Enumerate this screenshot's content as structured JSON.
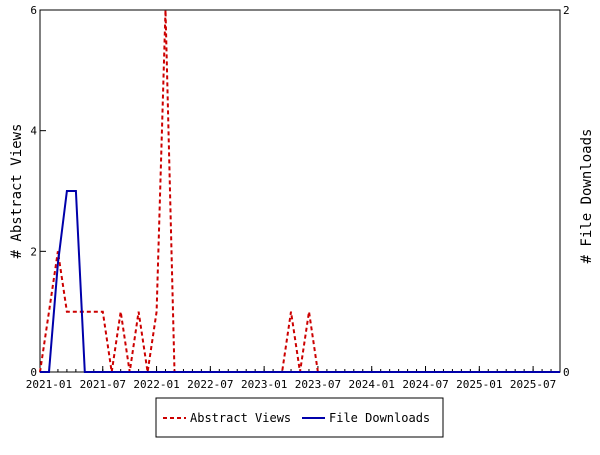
{
  "chart_data": {
    "type": "line",
    "title": "",
    "xlabel": "",
    "ylabel_left": "# Abstract Views",
    "ylabel_right": "# File Downloads",
    "x_ticks": [
      "2021-01",
      "2021-07",
      "2022-01",
      "2022-07",
      "2023-01",
      "2023-07",
      "2024-01",
      "2024-07",
      "2025-01",
      "2025-07"
    ],
    "y_left_ticks": [
      "0",
      "2",
      "4",
      "6"
    ],
    "y_right_ticks": [
      "0",
      "2"
    ],
    "ylim_left": [
      0,
      6
    ],
    "ylim_right": [
      0,
      2
    ],
    "xlim": [
      "2020-12",
      "2025-10"
    ],
    "grid": false,
    "legend_position": "bottom",
    "series": [
      {
        "name": "Abstract Views",
        "axis": "left",
        "color": "#cc0000",
        "dash": "dashed",
        "points": [
          [
            "2020-12",
            0
          ],
          [
            "2021-01",
            1
          ],
          [
            "2021-02",
            2
          ],
          [
            "2021-03",
            1
          ],
          [
            "2021-04",
            1
          ],
          [
            "2021-05",
            1
          ],
          [
            "2021-06",
            1
          ],
          [
            "2021-07",
            1
          ],
          [
            "2021-08",
            0
          ],
          [
            "2021-09",
            1
          ],
          [
            "2021-10",
            0
          ],
          [
            "2021-11",
            1
          ],
          [
            "2021-12",
            0
          ],
          [
            "2022-01",
            1
          ],
          [
            "2022-02",
            6
          ],
          [
            "2022-03",
            0
          ],
          [
            "2022-04",
            0
          ],
          [
            "2022-05",
            0
          ],
          [
            "2022-06",
            0
          ],
          [
            "2022-07",
            0
          ],
          [
            "2022-08",
            0
          ],
          [
            "2022-09",
            0
          ],
          [
            "2022-10",
            0
          ],
          [
            "2022-11",
            0
          ],
          [
            "2022-12",
            0
          ],
          [
            "2023-01",
            0
          ],
          [
            "2023-02",
            0
          ],
          [
            "2023-03",
            0
          ],
          [
            "2023-04",
            1
          ],
          [
            "2023-05",
            0
          ],
          [
            "2023-06",
            1
          ],
          [
            "2023-07",
            0
          ],
          [
            "2023-08",
            0
          ],
          [
            "2023-09",
            0
          ],
          [
            "2023-10",
            0
          ],
          [
            "2023-11",
            0
          ],
          [
            "2023-12",
            0
          ],
          [
            "2024-01",
            0
          ],
          [
            "2024-02",
            0
          ],
          [
            "2024-03",
            0
          ],
          [
            "2024-04",
            0
          ],
          [
            "2024-05",
            0
          ],
          [
            "2024-06",
            0
          ],
          [
            "2024-07",
            0
          ],
          [
            "2024-08",
            0
          ],
          [
            "2024-09",
            0
          ],
          [
            "2024-10",
            0
          ],
          [
            "2024-11",
            0
          ],
          [
            "2024-12",
            0
          ],
          [
            "2025-01",
            0
          ],
          [
            "2025-02",
            0
          ],
          [
            "2025-03",
            0
          ],
          [
            "2025-04",
            0
          ],
          [
            "2025-05",
            0
          ],
          [
            "2025-06",
            0
          ],
          [
            "2025-07",
            0
          ],
          [
            "2025-08",
            0
          ],
          [
            "2025-09",
            0
          ],
          [
            "2025-10",
            0
          ]
        ]
      },
      {
        "name": "File Downloads",
        "axis": "right",
        "color": "#0000aa",
        "dash": "solid",
        "points": [
          [
            "2020-12",
            0
          ],
          [
            "2021-01",
            0
          ],
          [
            "2021-02",
            0.6
          ],
          [
            "2021-03",
            1
          ],
          [
            "2021-04",
            1
          ],
          [
            "2021-05",
            0
          ],
          [
            "2021-06",
            0
          ],
          [
            "2021-07",
            0
          ],
          [
            "2022-01",
            0
          ],
          [
            "2022-07",
            0
          ],
          [
            "2023-01",
            0
          ],
          [
            "2023-07",
            0
          ],
          [
            "2024-01",
            0
          ],
          [
            "2024-07",
            0
          ],
          [
            "2025-01",
            0
          ],
          [
            "2025-07",
            0
          ],
          [
            "2025-10",
            0
          ]
        ]
      }
    ]
  }
}
